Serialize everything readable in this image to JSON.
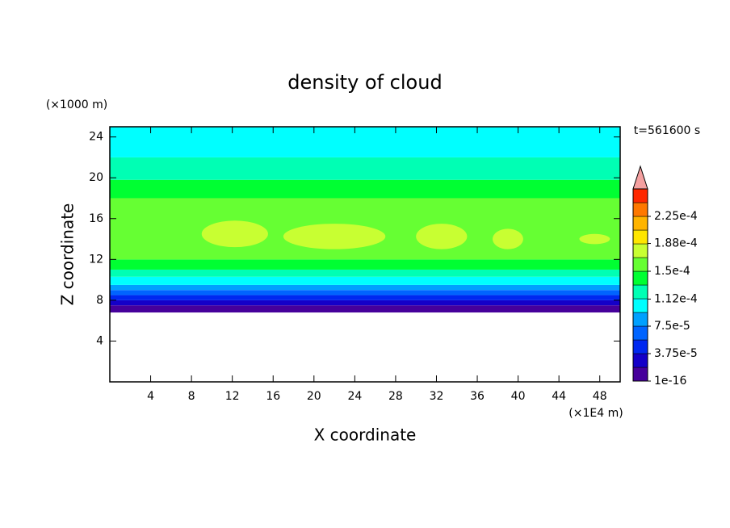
{
  "chart_data": {
    "type": "contour",
    "title": "density of cloud",
    "xlabel": "X coordinate",
    "ylabel": "Z coordinate",
    "x_unit_label": "(×1E4 m)",
    "y_unit_label": "(×1000 m)",
    "time_label": "t=561600 s",
    "xlim": [
      0,
      50
    ],
    "xticks": [
      4,
      8,
      12,
      16,
      20,
      24,
      28,
      32,
      36,
      40,
      44,
      48
    ],
    "ylim": [
      0,
      25
    ],
    "yticks": [
      4,
      8,
      12,
      16,
      20,
      24
    ],
    "z_bounds": [
      6.8,
      7.5,
      8,
      8.5,
      9,
      9.5,
      10.3,
      11,
      12,
      18,
      19.8,
      22,
      25
    ],
    "values": [
      1e-05,
      2.8e-05,
      4.7e-05,
      6.5e-05,
      8.4e-05,
      0.000103,
      0.00012,
      0.00014,
      0.00016,
      0.00014,
      0.00012,
      0.000103
    ],
    "patches": [
      {
        "x": [
          9,
          15.5
        ],
        "z": [
          13.2,
          15.8
        ],
        "value": 0.000178
      },
      {
        "x": [
          17,
          27
        ],
        "z": [
          13,
          15.5
        ],
        "value": 0.000178
      },
      {
        "x": [
          30,
          35
        ],
        "z": [
          13,
          15.5
        ],
        "value": 0.000178
      },
      {
        "x": [
          37.5,
          40.5
        ],
        "z": [
          13,
          15
        ],
        "value": 0.000178
      },
      {
        "x": [
          46,
          49
        ],
        "z": [
          13.5,
          14.5
        ],
        "value": 0.000178
      }
    ],
    "colorbar": {
      "bounds": [
        1e-16,
        1.875e-05,
        3.75e-05,
        5.625e-05,
        7.5e-05,
        9.375e-05,
        0.0001125,
        0.00013125,
        0.00015,
        0.00016875,
        0.0001875,
        0.00020625,
        0.000225,
        0.00024375,
        0.0002625
      ],
      "colors": [
        "#46009b",
        "#1400c8",
        "#0028f0",
        "#0064ff",
        "#00a0ff",
        "#00ffff",
        "#00ffb4",
        "#00ff32",
        "#66ff33",
        "#c8ff32",
        "#ffe600",
        "#ffb400",
        "#ff7800",
        "#ff2800"
      ],
      "over_color": "#f4a0a0",
      "ticks": [
        {
          "value": 1e-16,
          "label": "1e-16"
        },
        {
          "value": 3.75e-05,
          "label": "3.75e-5"
        },
        {
          "value": 7.5e-05,
          "label": "7.5e-5"
        },
        {
          "value": 0.000112,
          "label": "1.12e-4"
        },
        {
          "value": 0.00015,
          "label": "1.5e-4"
        },
        {
          "value": 0.000188,
          "label": "1.88e-4"
        },
        {
          "value": 0.000225,
          "label": "2.25e-4"
        }
      ]
    },
    "grid": false
  }
}
